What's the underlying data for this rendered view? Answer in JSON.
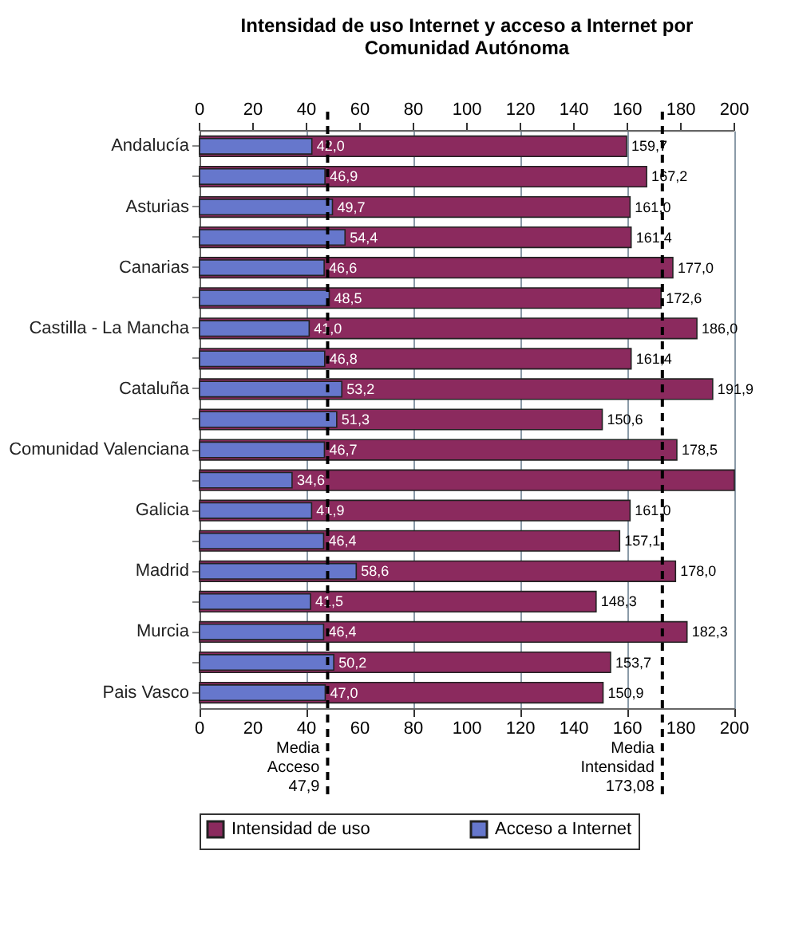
{
  "chart_data": {
    "type": "bar",
    "orientation": "horizontal",
    "title": [
      "Intensidad de uso Internet y acceso a Internet por",
      "Comunidad Autónoma"
    ],
    "categories": [
      "Andalucía",
      null,
      "Asturias",
      null,
      "Canarias",
      null,
      "Castilla - La Mancha",
      null,
      "Cataluña",
      null,
      "Comunidad Valenciana",
      null,
      "Galicia",
      null,
      "Madrid",
      null,
      "Murcia",
      null,
      "Pais Vasco"
    ],
    "series": [
      {
        "name": "Intensidad de uso",
        "color": "#8b2a5e",
        "values": [
          159.7,
          167.2,
          161.0,
          161.4,
          177.0,
          172.6,
          186.0,
          161.4,
          191.9,
          150.6,
          178.5,
          200,
          161.0,
          157.1,
          178.0,
          148.3,
          182.3,
          153.7,
          150.9
        ],
        "value_labels": [
          "159,7",
          "167,2",
          "161,0",
          "161,4",
          "177,0",
          "172,6",
          "186,0",
          "161,4",
          "191,9",
          "150,6",
          "178,5",
          null,
          "161,0",
          "157,1",
          "178,0",
          "148,3",
          "182,3",
          "153,7",
          "150,9"
        ]
      },
      {
        "name": "Acceso a Internet",
        "color": "#6677cc",
        "values": [
          42.0,
          46.9,
          49.7,
          54.4,
          46.6,
          48.5,
          41.0,
          46.8,
          53.2,
          51.3,
          46.7,
          34.6,
          41.9,
          46.4,
          58.6,
          41.5,
          46.4,
          50.2,
          47.0
        ],
        "value_labels": [
          "42,0",
          "46,9",
          "49,7",
          "54,4",
          "46,6",
          "48,5",
          "41,0",
          "46,8",
          "53,2",
          "51,3",
          "46,7",
          "34,6",
          "41,9",
          "46,4",
          "58,6",
          "41,5",
          "46,4",
          "50,2",
          "47,0"
        ]
      }
    ],
    "xlim": [
      0,
      200
    ],
    "xticks": [
      0,
      20,
      40,
      60,
      80,
      100,
      120,
      140,
      160,
      180,
      200
    ],
    "x2lim": [
      0,
      200
    ],
    "x2ticks": [
      0,
      20,
      40,
      60,
      80,
      100,
      120,
      140,
      160,
      180,
      200
    ],
    "grid": "x",
    "legend": "bottom",
    "ref_lines": [
      {
        "axis": "x",
        "value": 47.9,
        "label": "Media\nAcceso\n47,9",
        "line_style": "dashed",
        "color": "#000000"
      },
      {
        "axis": "x",
        "value": 173.08,
        "label": "Media\nIntensidad\n173,08",
        "line_style": "dashed",
        "color": "#000000"
      }
    ]
  }
}
